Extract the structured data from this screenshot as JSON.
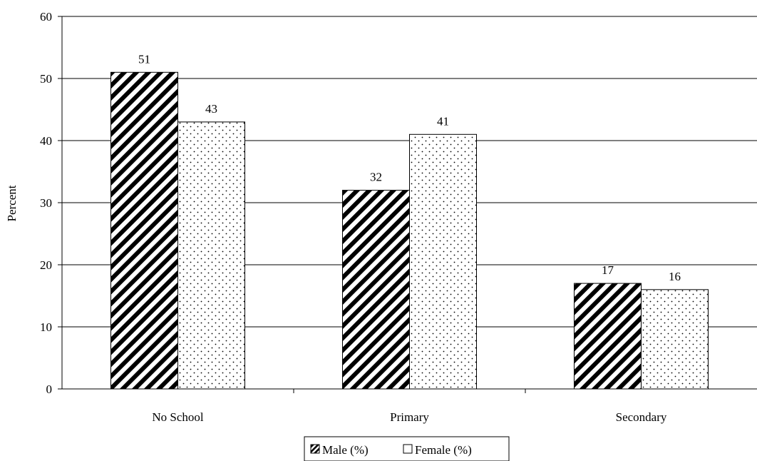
{
  "chart_data": {
    "type": "bar",
    "categories": [
      "No School",
      "Primary",
      "Secondary"
    ],
    "series": [
      {
        "name": "Male (%)",
        "values": [
          51,
          32,
          17
        ],
        "pattern": "diagonal-stripes"
      },
      {
        "name": "Female (%)",
        "values": [
          43,
          41,
          16
        ],
        "pattern": "dots"
      }
    ],
    "ylabel": "Percent",
    "ylim": [
      0,
      60
    ],
    "yticks": [
      0,
      10,
      20,
      30,
      40,
      50,
      60
    ],
    "grid": true,
    "data_labels": true,
    "legend_position": "bottom"
  },
  "colors": {
    "bar_outline": "#000000",
    "grid": "#000000",
    "background": "#ffffff"
  }
}
